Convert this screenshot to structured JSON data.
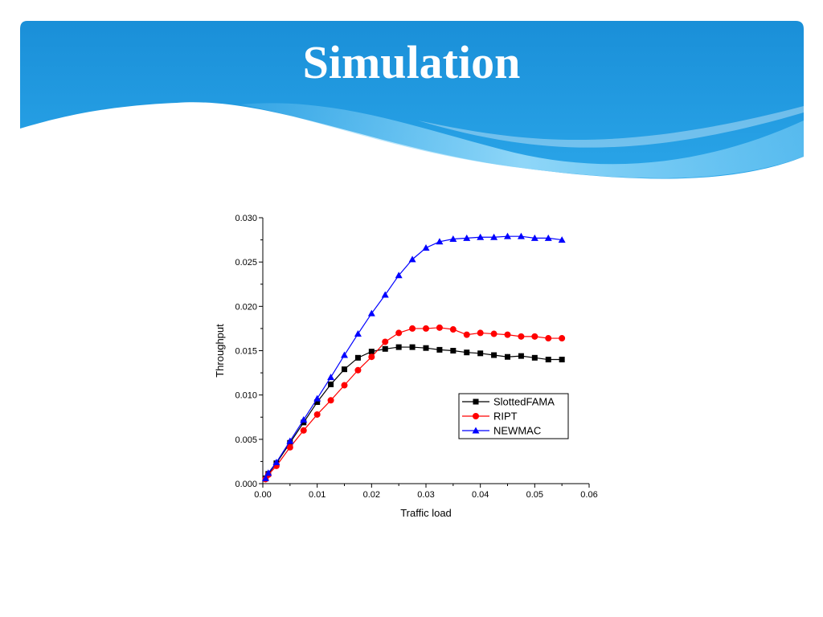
{
  "slide": {
    "title": "Simulation"
  },
  "theme": {
    "banner_dark": "#1a8fd8",
    "banner_light": "#5fc0f2"
  },
  "chart_data": {
    "type": "line",
    "xlabel": "Traffic load",
    "ylabel": "Throughput",
    "xlim": [
      0,
      0.06
    ],
    "ylim": [
      0,
      0.03
    ],
    "xticks": [
      "0.00",
      "0.01",
      "0.02",
      "0.03",
      "0.04",
      "0.05",
      "0.06"
    ],
    "yticks": [
      "0.000",
      "0.005",
      "0.010",
      "0.015",
      "0.020",
      "0.025",
      "0.030"
    ],
    "legend_position": "lower-right",
    "x": [
      0.0005,
      0.001,
      0.0025,
      0.005,
      0.0075,
      0.01,
      0.0125,
      0.015,
      0.0175,
      0.02,
      0.0225,
      0.025,
      0.0275,
      0.03,
      0.0325,
      0.035,
      0.0375,
      0.04,
      0.0425,
      0.045,
      0.0475,
      0.05,
      0.0525,
      0.055
    ],
    "series": [
      {
        "name": "SlottedFAMA",
        "color": "#000000",
        "marker": "square",
        "values": [
          0.0006,
          0.0011,
          0.0023,
          0.0046,
          0.0069,
          0.0092,
          0.0112,
          0.0129,
          0.0142,
          0.0149,
          0.0152,
          0.0154,
          0.0154,
          0.0153,
          0.0151,
          0.015,
          0.0148,
          0.0147,
          0.0145,
          0.0143,
          0.0144,
          0.0142,
          0.014,
          0.014
        ]
      },
      {
        "name": "RIPT",
        "color": "#ff0000",
        "marker": "circle",
        "values": [
          0.0005,
          0.001,
          0.002,
          0.0041,
          0.006,
          0.0078,
          0.0094,
          0.0111,
          0.0128,
          0.0143,
          0.016,
          0.017,
          0.0175,
          0.0175,
          0.0176,
          0.0174,
          0.0168,
          0.017,
          0.0169,
          0.0168,
          0.0166,
          0.0166,
          0.0164,
          0.0164
        ]
      },
      {
        "name": "NEWMAC",
        "color": "#0000ff",
        "marker": "triangle",
        "values": [
          0.0006,
          0.0012,
          0.0024,
          0.0048,
          0.0072,
          0.0096,
          0.012,
          0.0145,
          0.0169,
          0.0192,
          0.0213,
          0.0235,
          0.0253,
          0.0266,
          0.0273,
          0.0276,
          0.0277,
          0.0278,
          0.0278,
          0.0279,
          0.0279,
          0.0277,
          0.0277,
          0.0275
        ]
      }
    ]
  }
}
